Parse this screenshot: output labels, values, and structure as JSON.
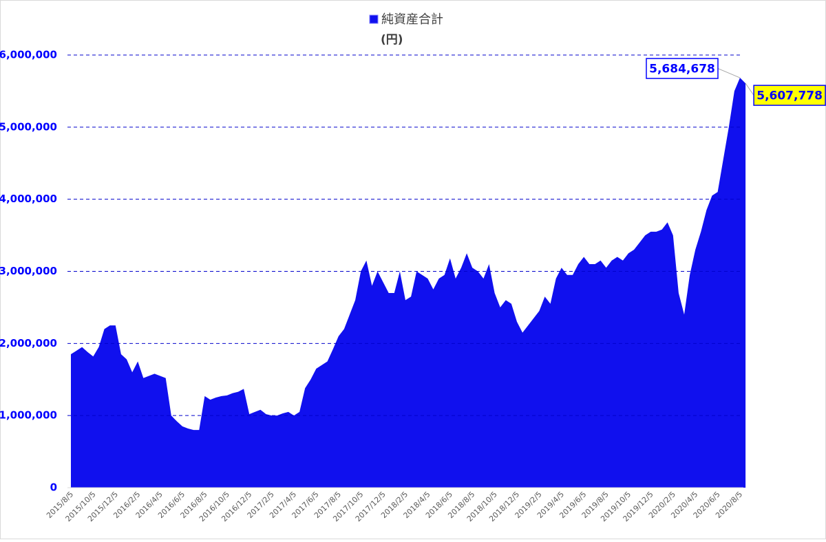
{
  "chart_data": {
    "type": "area",
    "y_label": "(円)",
    "categories": [
      "2015/8/5",
      null,
      null,
      null,
      "2015/10/5",
      null,
      null,
      null,
      "2015/12/5",
      null,
      null,
      null,
      "2016/2/5",
      null,
      null,
      null,
      "2016/4/5",
      null,
      null,
      null,
      "2016/6/5",
      null,
      null,
      null,
      "2016/8/5",
      null,
      null,
      null,
      "2016/10/5",
      null,
      null,
      null,
      "2016/12/5",
      null,
      null,
      null,
      "2017/2/5",
      null,
      null,
      null,
      "2017/4/5",
      null,
      null,
      null,
      "2017/6/5",
      null,
      null,
      null,
      "2017/8/5",
      null,
      null,
      null,
      "2017/10/5",
      null,
      null,
      null,
      "2017/12/5",
      null,
      null,
      null,
      "2018/2/5",
      null,
      null,
      null,
      "2018/4/5",
      null,
      null,
      null,
      "2018/6/5",
      null,
      null,
      null,
      "2018/8/5",
      null,
      null,
      null,
      "2018/10/5",
      null,
      null,
      null,
      "2018/12/5",
      null,
      null,
      null,
      "2019/2/5",
      null,
      null,
      null,
      "2019/4/5",
      null,
      null,
      null,
      "2019/6/5",
      null,
      null,
      null,
      "2019/8/5",
      null,
      null,
      null,
      "2019/10/5",
      null,
      null,
      null,
      "2019/12/5",
      null,
      null,
      null,
      "2020/2/5",
      null,
      null,
      null,
      "2020/4/5",
      null,
      null,
      null,
      "2020/6/5",
      null,
      null,
      null,
      "2020/8/5",
      null
    ],
    "series": [
      {
        "name": "純資産合計",
        "color": "#1010ee",
        "values": [
          1850000,
          1900000,
          1950000,
          1880000,
          1820000,
          1950000,
          2200000,
          2250000,
          2250000,
          1850000,
          1780000,
          1600000,
          1750000,
          1520000,
          1550000,
          1580000,
          1550000,
          1520000,
          1000000,
          920000,
          850000,
          820000,
          800000,
          800000,
          1270000,
          1220000,
          1250000,
          1270000,
          1280000,
          1310000,
          1330000,
          1370000,
          1020000,
          1050000,
          1080000,
          1020000,
          1000000,
          1000000,
          1030000,
          1050000,
          1000000,
          1050000,
          1380000,
          1500000,
          1650000,
          1700000,
          1750000,
          1920000,
          2100000,
          2200000,
          2400000,
          2600000,
          3000000,
          3150000,
          2800000,
          3000000,
          2850000,
          2700000,
          2700000,
          3000000,
          2600000,
          2650000,
          3000000,
          2950000,
          2900000,
          2750000,
          2900000,
          2950000,
          3180000,
          2900000,
          3050000,
          3250000,
          3050000,
          3000000,
          2900000,
          3100000,
          2700000,
          2500000,
          2600000,
          2550000,
          2300000,
          2150000,
          2250000,
          2350000,
          2450000,
          2650000,
          2550000,
          2900000,
          3050000,
          2950000,
          2950000,
          3100000,
          3200000,
          3100000,
          3100000,
          3150000,
          3050000,
          3150000,
          3200000,
          3150000,
          3250000,
          3300000,
          3400000,
          3500000,
          3550000,
          3550000,
          3580000,
          3680000,
          3500000,
          2700000,
          2400000,
          2950000,
          3300000,
          3550000,
          3850000,
          4050000,
          4100000,
          4550000,
          5000000,
          5500000,
          5684678,
          5607778
        ],
        "value_labels": [
          null,
          null,
          null,
          null,
          null,
          null,
          null,
          null,
          null,
          null,
          null,
          null,
          null,
          null,
          null,
          null,
          null,
          null,
          null,
          null,
          null,
          null,
          null,
          null,
          null,
          null,
          null,
          null,
          null,
          null,
          null,
          null,
          null,
          null,
          null,
          null,
          null,
          null,
          null,
          null,
          null,
          null,
          null,
          null,
          null,
          null,
          null,
          null,
          null,
          null,
          null,
          null,
          null,
          null,
          null,
          null,
          null,
          null,
          null,
          null,
          null,
          null,
          null,
          null,
          null,
          null,
          null,
          null,
          null,
          null,
          null,
          null,
          null,
          null,
          null,
          null,
          null,
          null,
          null,
          null,
          null,
          null,
          null,
          null,
          null,
          null,
          null,
          null,
          null,
          null,
          null,
          null,
          null,
          null,
          null,
          null,
          null,
          null,
          null,
          null,
          null,
          null,
          null,
          null,
          null,
          null,
          null,
          null,
          null,
          null,
          null,
          null,
          null,
          null,
          null,
          null,
          null,
          null,
          null,
          null,
          "5,684,678",
          "5,607,778"
        ]
      }
    ],
    "ylim": [
      0,
      6000000
    ],
    "yticks": [
      0,
      {
        "value": 1000000,
        "label": "1,000,000"
      },
      {
        "value": 2000000,
        "label": "2,000,000"
      },
      {
        "value": 3000000,
        "label": "3,000,000"
      },
      {
        "value": 4000000,
        "label": "4,000,000"
      },
      {
        "value": 5000000,
        "label": "5,000,000"
      },
      {
        "value": 6000000,
        "label": "6,000,000"
      }
    ],
    "grid": true,
    "legend": "top"
  }
}
